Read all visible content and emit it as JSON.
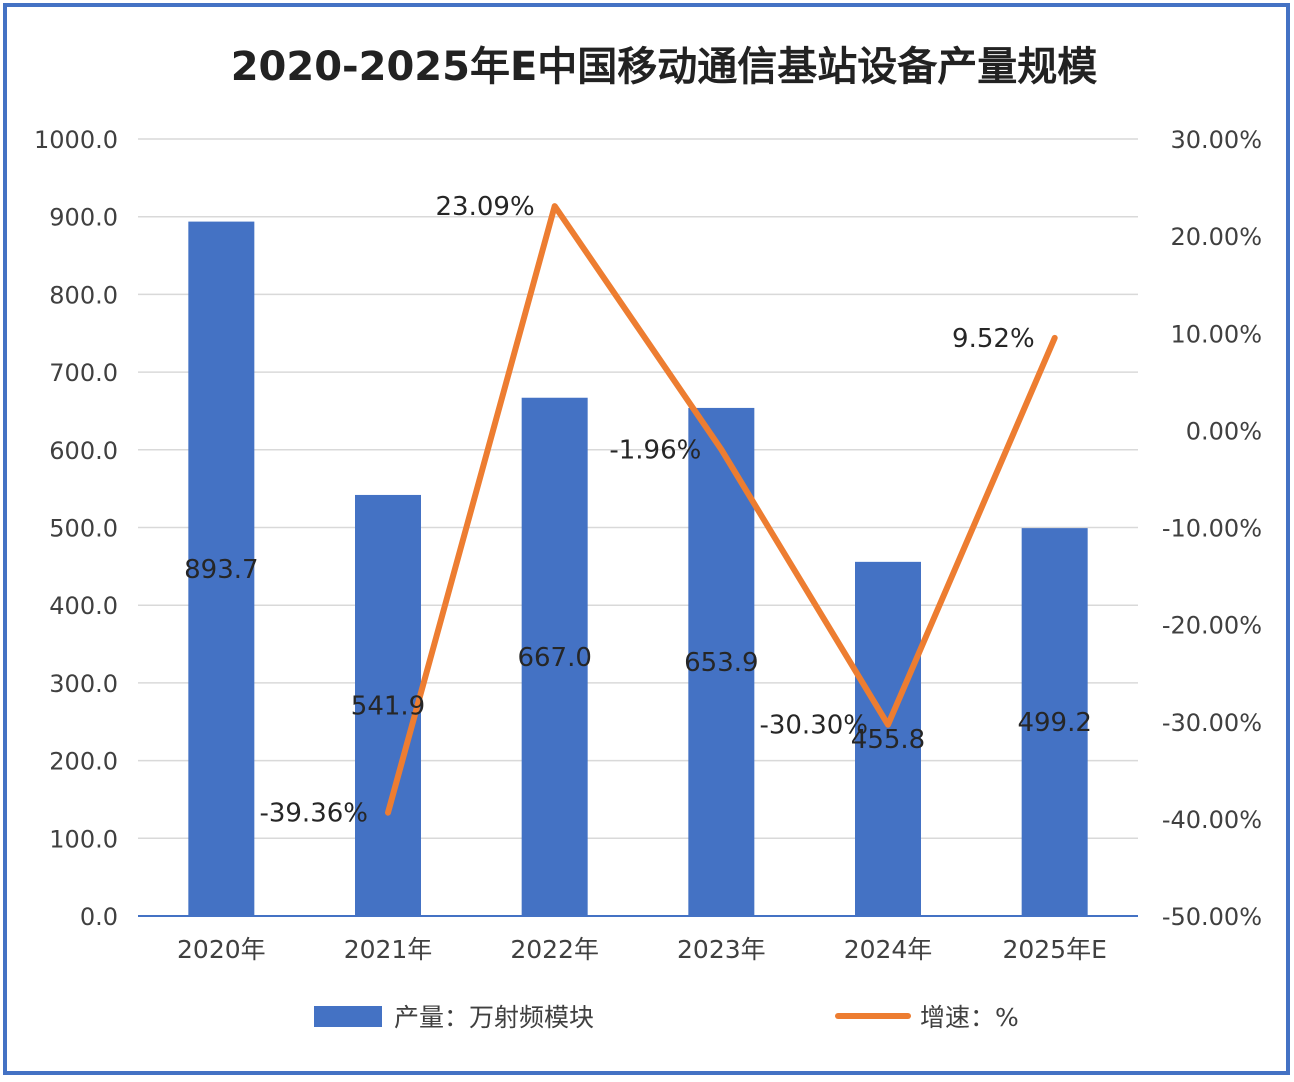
{
  "chart_data": {
    "type": "bar+line",
    "title": "2020-2025年E中国移动通信基站设备产量规模",
    "categories": [
      "2020年",
      "2021年",
      "2022年",
      "2023年",
      "2024年",
      "2025年E"
    ],
    "series": [
      {
        "name": "产量：万射频模块",
        "type": "bar",
        "axis": "left",
        "color": "#4472C4",
        "values": [
          893.7,
          541.9,
          667.0,
          653.9,
          455.8,
          499.2
        ],
        "labels": [
          "893.7",
          "541.9",
          "667.0",
          "653.9",
          "455.8",
          "499.2"
        ]
      },
      {
        "name": "增速：%",
        "type": "line",
        "axis": "right",
        "color": "#ED7D31",
        "values": [
          null,
          -39.36,
          23.09,
          -1.96,
          -30.3,
          9.52
        ],
        "labels": [
          "",
          "-39.36%",
          "23.09%",
          "-1.96%",
          "-30.30%",
          "9.52%"
        ]
      }
    ],
    "y_left": {
      "min": 0,
      "max": 1000,
      "step": 100,
      "ticks": [
        "0.0",
        "100.0",
        "200.0",
        "300.0",
        "400.0",
        "500.0",
        "600.0",
        "700.0",
        "800.0",
        "900.0",
        "1000.0"
      ]
    },
    "y_right": {
      "min": -50,
      "max": 30,
      "step": 10,
      "ticks": [
        "-50.00%",
        "-40.00%",
        "-30.00%",
        "-20.00%",
        "-10.00%",
        "0.00%",
        "10.00%",
        "20.00%",
        "30.00%"
      ]
    },
    "grid": true,
    "legend": "bottom",
    "frame_color": "#4472C4",
    "grid_color": "#D9D9D9"
  }
}
